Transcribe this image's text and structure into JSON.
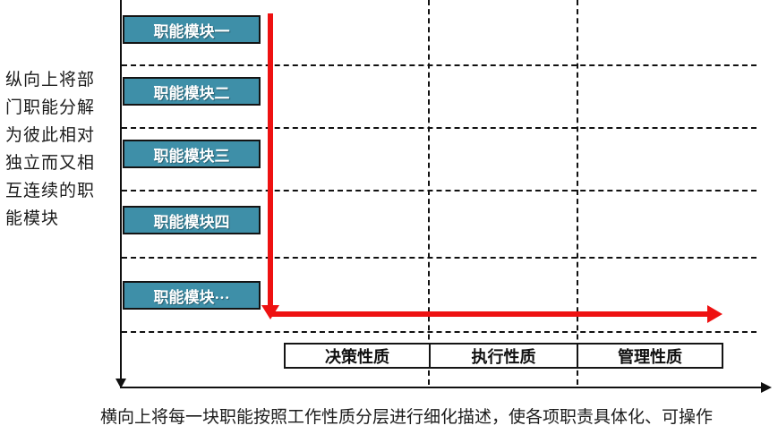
{
  "left_note": {
    "text": "纵向上将部门职能分解为彼此相对独立而又相互连续的职能模块",
    "lines": [
      "纵向上将部",
      "门职能分解",
      "为彼此相对",
      "独立而又相",
      "互连续的职",
      "能模块"
    ]
  },
  "modules": [
    {
      "label": "职能模块一"
    },
    {
      "label": "职能模块二"
    },
    {
      "label": "职能模块三"
    },
    {
      "label": "职能模块四"
    },
    {
      "label": "职能模块···"
    }
  ],
  "module_style": {
    "fill": "#3e8fa8",
    "text_color": "#ffffff",
    "border_color": "#141414"
  },
  "quality_headers": [
    {
      "label": "决策性质"
    },
    {
      "label": "执行性质"
    },
    {
      "label": "管理性质"
    }
  ],
  "arrow": {
    "color": "#ee1111",
    "shape": "down-then-right"
  },
  "axes": {
    "color": "#101010",
    "dashed_rows": 5,
    "dashed_columns": 2
  },
  "bottom_caption": "横向上将每一块职能按照工作性质分层进行细化描述，使各项职责具体化、可操作"
}
